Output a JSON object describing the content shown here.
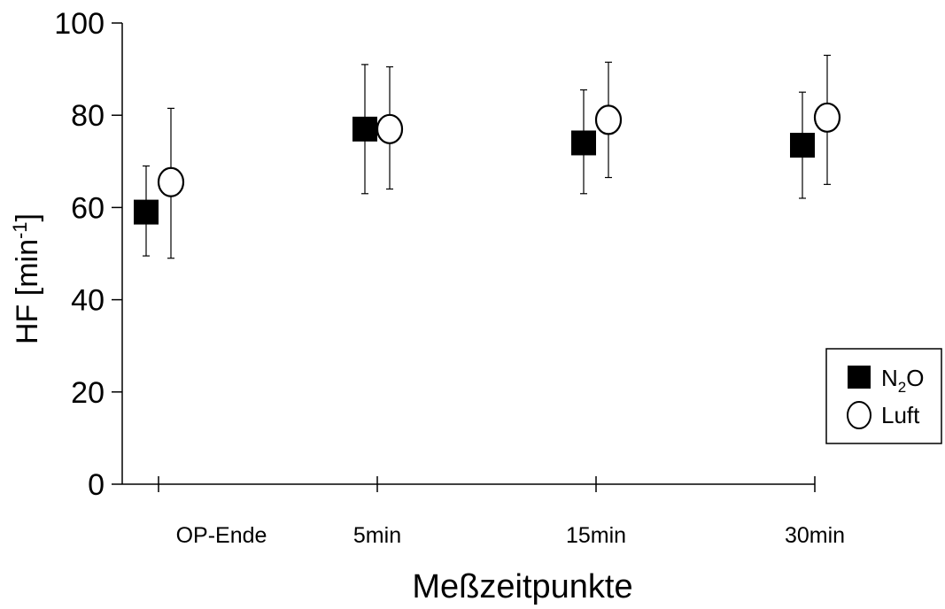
{
  "chart_data": {
    "type": "scatter",
    "title": "",
    "xlabel": "Meßzeitpunkte",
    "ylabel": {
      "main": "HF [min",
      "sup": "-1",
      "end": "]"
    },
    "categories": [
      "OP-Ende",
      "5min",
      "15min",
      "30min"
    ],
    "ylim": [
      0,
      100
    ],
    "yticks": [
      "0",
      "20",
      "40",
      "60",
      "80",
      "100"
    ],
    "grid": false,
    "legend_position": "right",
    "series": [
      {
        "name": "N2O",
        "legend": {
          "base": "N",
          "sub": "2",
          "end": "O"
        },
        "marker": "square-filled",
        "values": [
          59,
          77,
          74,
          73.5
        ],
        "error_low": [
          49.5,
          63,
          63,
          62
        ],
        "error_high": [
          69,
          91,
          85.5,
          85
        ]
      },
      {
        "name": "Luft",
        "legend": {
          "base": "Luft",
          "sub": "",
          "end": ""
        },
        "marker": "circle-open",
        "values": [
          65.5,
          77,
          79,
          79.5
        ],
        "error_low": [
          49,
          64,
          66.5,
          65
        ],
        "error_high": [
          81.5,
          90.5,
          91.5,
          93
        ]
      }
    ],
    "colors": {
      "marker": "#000000",
      "marker_fill_open": "#ffffff",
      "axis": "#000000"
    }
  }
}
